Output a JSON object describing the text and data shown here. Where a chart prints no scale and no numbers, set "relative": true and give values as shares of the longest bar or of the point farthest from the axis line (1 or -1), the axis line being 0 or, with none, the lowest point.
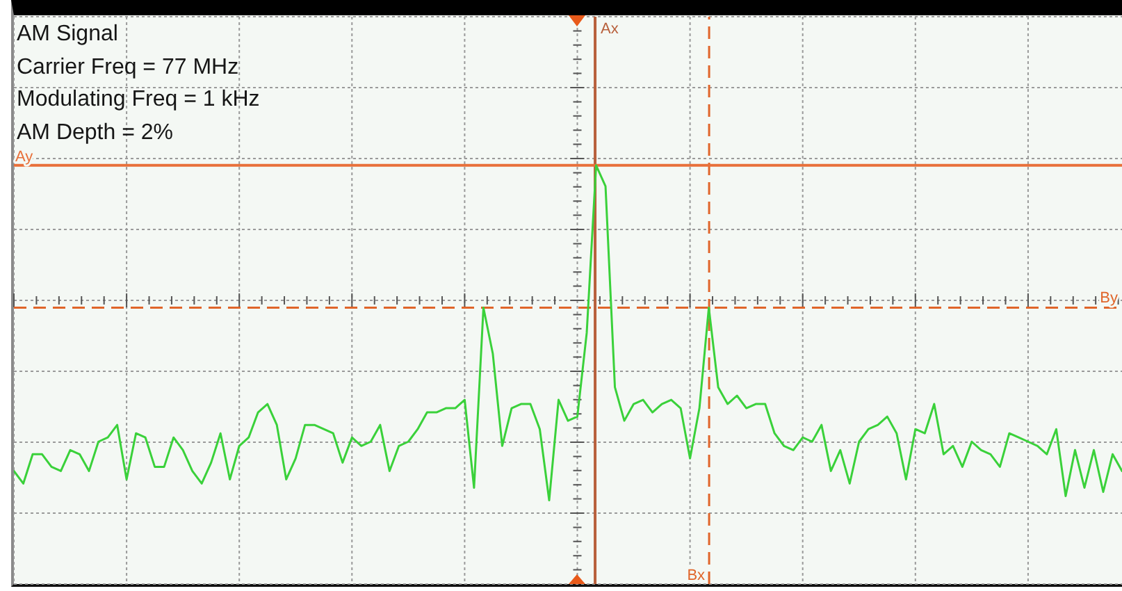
{
  "chart_data": {
    "type": "line",
    "title": "AM Signal",
    "annotations": [
      "Carrier Freq = 77 MHz",
      "Modulating Freq = 1 kHz",
      "AM Depth = 2%",
      "Ax",
      "Bx"
    ],
    "relative": true,
    "grid": true,
    "marker": "none",
    "categories": [
      null,
      null,
      null,
      null,
      null,
      null,
      null,
      null,
      null,
      null,
      null,
      null,
      null,
      null,
      null,
      null,
      null,
      null,
      null,
      null,
      null,
      null,
      null,
      null,
      null,
      null,
      null,
      null,
      null,
      null,
      null,
      null,
      null,
      null,
      null,
      null,
      null,
      null,
      null,
      null,
      null,
      null,
      null,
      null,
      null,
      null,
      null,
      null,
      null,
      null,
      null,
      null,
      null,
      null,
      null,
      null,
      null,
      null,
      null,
      null,
      null,
      null,
      null,
      null,
      null,
      null,
      null,
      null,
      null,
      null,
      null,
      null,
      null,
      null,
      null,
      null,
      null,
      null,
      null,
      null,
      null,
      null,
      null,
      null,
      null,
      null,
      null,
      null,
      null,
      null,
      null,
      null,
      null,
      null,
      null,
      null,
      null,
      null,
      null,
      null,
      null,
      null,
      null,
      null,
      null,
      null,
      null,
      null,
      null,
      null,
      null,
      null,
      null,
      null,
      null,
      null,
      null,
      null,
      null
    ],
    "series": [
      {
        "color": "#3ad13a",
        "values": [
          0.27,
          0.24,
          0.31,
          0.31,
          0.28,
          0.27,
          0.32,
          0.31,
          0.27,
          0.34,
          0.35,
          0.38,
          0.25,
          0.36,
          0.35,
          0.28,
          0.28,
          0.35,
          0.32,
          0.27,
          0.24,
          0.29,
          0.36,
          0.25,
          0.33,
          0.35,
          0.41,
          0.43,
          0.38,
          0.25,
          0.3,
          0.38,
          0.38,
          0.37,
          0.36,
          0.29,
          0.35,
          0.33,
          0.34,
          0.38,
          0.27,
          0.33,
          0.34,
          0.37,
          0.41,
          0.41,
          0.42,
          0.42,
          0.44,
          0.23,
          0.66,
          0.55,
          0.33,
          0.42,
          0.43,
          0.43,
          0.37,
          0.2,
          0.44,
          0.39,
          0.4,
          0.6,
          1,
          0.95,
          0.47,
          0.39,
          0.43,
          0.44,
          0.41,
          0.43,
          0.44,
          0.42,
          0.3,
          0.42,
          0.66,
          0.47,
          0.43,
          0.45,
          0.42,
          0.43,
          0.43,
          0.36,
          0.33,
          0.32,
          0.35,
          0.34,
          0.38,
          0.27,
          0.32,
          0.24,
          0.34,
          0.37,
          0.38,
          0.4,
          0.36,
          0.25,
          0.37,
          0.36,
          0.43,
          0.31,
          0.33,
          0.28,
          0.34,
          0.32,
          0.31,
          0.28,
          0.36,
          0.35,
          0.34,
          0.33,
          0.31,
          0.37,
          0.21,
          0.32,
          0.23,
          0.32,
          0.22,
          0.31,
          0.27
        ]
      }
    ],
    "ref_lines": [
      {
        "axis": "y",
        "value": 1,
        "label": "Ay",
        "color": "#e8703a",
        "line_style": "solid"
      },
      {
        "axis": "y",
        "value": 0.66,
        "label": "By",
        "color": "#e0652a",
        "line_style": "dashed"
      }
    ]
  }
}
